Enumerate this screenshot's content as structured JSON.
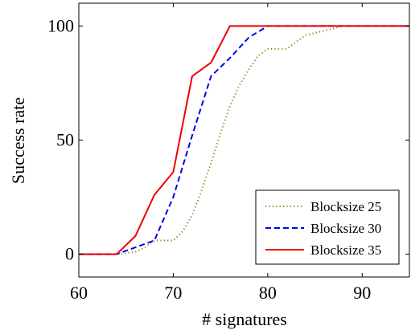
{
  "chart_data": {
    "type": "line",
    "title": "",
    "xlabel": "# signatures",
    "ylabel": "Success rate",
    "xlim": [
      60,
      95
    ],
    "ylim": [
      -10,
      110
    ],
    "x_ticks": [
      60,
      70,
      80,
      90
    ],
    "y_ticks": [
      0,
      50,
      100
    ],
    "grid": false,
    "legend_position": "bottom-right",
    "series": [
      {
        "name": "Blocksize 25",
        "color": "#8b7d1a",
        "style": "dotted",
        "x": [
          60,
          64,
          66,
          67,
          68,
          69,
          70,
          71,
          72,
          73,
          74,
          75,
          76,
          77,
          78,
          79,
          80,
          81,
          82,
          83,
          84,
          85,
          86,
          87,
          88,
          89,
          90,
          95
        ],
        "y": [
          0,
          0,
          1,
          3,
          6,
          6,
          6,
          10,
          17,
          28,
          40,
          53,
          65,
          74,
          81,
          87,
          90,
          90,
          90,
          93,
          96,
          97,
          98,
          99,
          100,
          100,
          100,
          100
        ]
      },
      {
        "name": "Blocksize 30",
        "color": "#0000ee",
        "style": "dashed",
        "x": [
          60,
          64,
          66,
          68,
          70,
          72,
          74,
          76,
          78,
          80,
          95
        ],
        "y": [
          0,
          0,
          3,
          6,
          25,
          52,
          78,
          86,
          95,
          100,
          100
        ]
      },
      {
        "name": "Blocksize 35",
        "color": "#ee0000",
        "style": "solid",
        "x": [
          60,
          64,
          66,
          68,
          70,
          72,
          74,
          76,
          95
        ],
        "y": [
          0,
          0,
          8,
          26,
          36,
          78,
          84,
          100,
          100
        ]
      }
    ]
  }
}
